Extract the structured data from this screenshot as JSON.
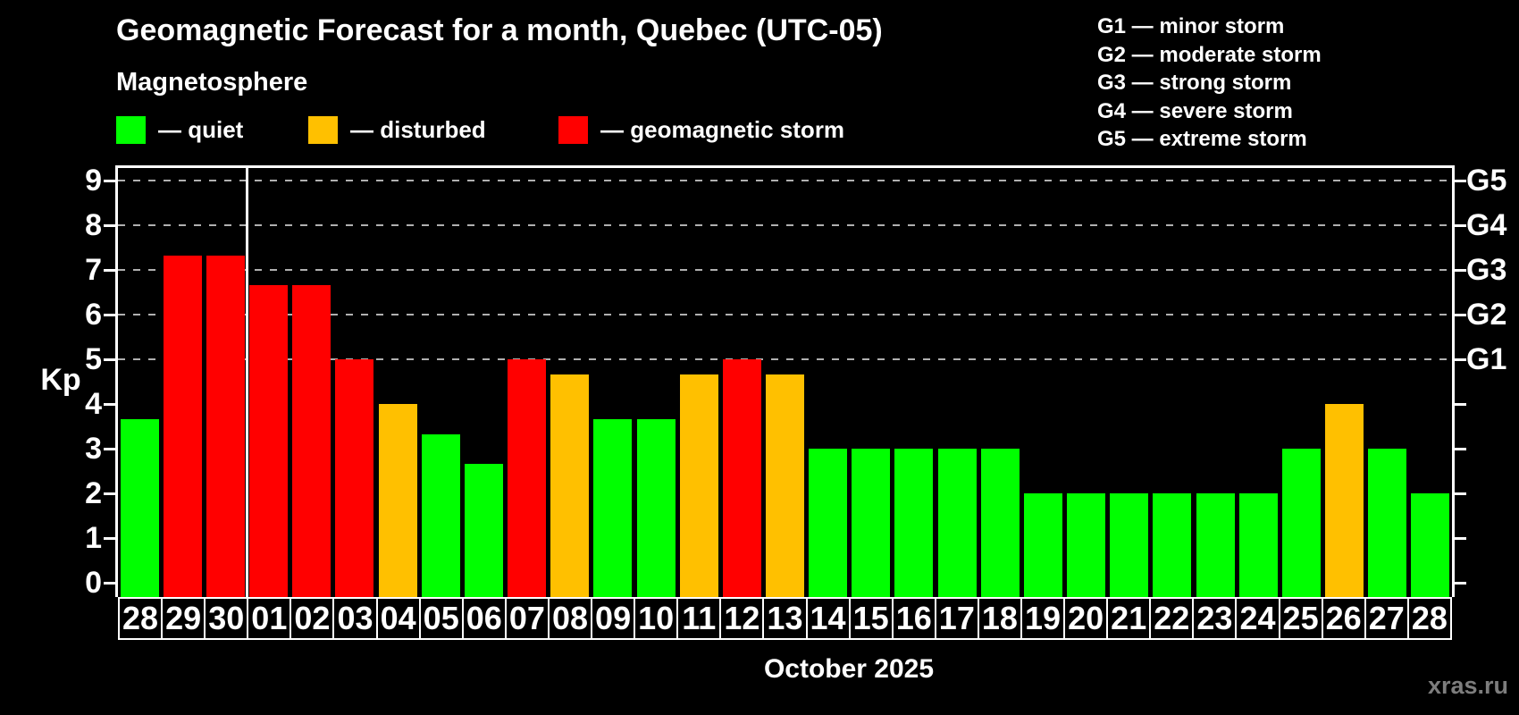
{
  "title": "Geomagnetic Forecast for a month, Quebec (UTC-05)",
  "subtitle": "Magnetosphere",
  "legend": {
    "items": [
      {
        "key": "quiet",
        "label": "— quiet"
      },
      {
        "key": "disturbed",
        "label": "— disturbed"
      },
      {
        "key": "storm",
        "label": "— geomagnetic storm"
      }
    ]
  },
  "storm_legend": {
    "lines": [
      "G1 — minor storm",
      "G2 — moderate storm",
      "G3 — strong storm",
      "G4 — severe storm",
      "G5 — extreme storm"
    ]
  },
  "colors": {
    "quiet": "#00ff00",
    "disturbed": "#ffc000",
    "storm": "#ff0000",
    "background": "#000000",
    "grid": "#b0b0b0",
    "text": "#ffffff",
    "watermark": "#7d7d7d"
  },
  "axis": {
    "y_label": "Kp",
    "y_ticks": [
      0,
      1,
      2,
      3,
      4,
      5,
      6,
      7,
      8,
      9
    ],
    "right_tick_labels": [
      "G1",
      "G2",
      "G3",
      "G4",
      "G5"
    ],
    "grid_levels": [
      5,
      6,
      7,
      8,
      9
    ],
    "x_label": "October 2025"
  },
  "watermark": "xras.ru",
  "chart_data": {
    "type": "bar",
    "title": "Geomagnetic Forecast for a month, Quebec (UTC-05)",
    "xlabel": "October 2025",
    "ylabel": "Kp",
    "ylim": [
      0,
      9.4
    ],
    "grid": "dashed horizontal at Kp 5-9 (G1-G5)",
    "month_boundary_index": 3,
    "categories": [
      "28",
      "29",
      "30",
      "01",
      "02",
      "03",
      "04",
      "05",
      "06",
      "07",
      "08",
      "09",
      "10",
      "11",
      "12",
      "13",
      "14",
      "15",
      "16",
      "17",
      "18",
      "19",
      "20",
      "21",
      "22",
      "23",
      "24",
      "25",
      "26",
      "27",
      "28"
    ],
    "values": [
      3.67,
      7.33,
      7.33,
      6.67,
      6.67,
      5,
      4,
      3.33,
      2.67,
      5,
      4.67,
      3.67,
      3.67,
      4.67,
      5,
      4.67,
      3,
      3,
      3,
      3,
      3,
      2,
      2,
      2,
      2,
      2,
      2,
      3,
      4,
      3,
      2
    ],
    "statuses": [
      "quiet",
      "storm",
      "storm",
      "storm",
      "storm",
      "storm",
      "disturbed",
      "quiet",
      "quiet",
      "storm",
      "disturbed",
      "quiet",
      "quiet",
      "disturbed",
      "storm",
      "disturbed",
      "quiet",
      "quiet",
      "quiet",
      "quiet",
      "quiet",
      "quiet",
      "quiet",
      "quiet",
      "quiet",
      "quiet",
      "quiet",
      "quiet",
      "disturbed",
      "quiet",
      "quiet"
    ]
  }
}
